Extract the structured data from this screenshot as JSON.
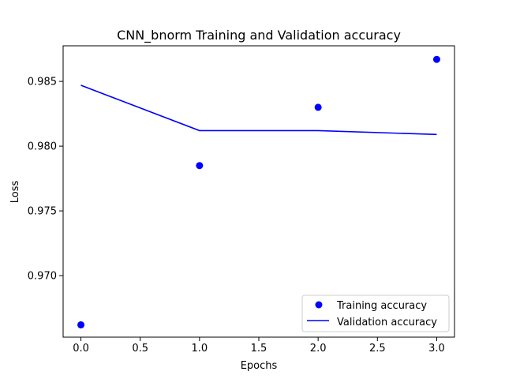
{
  "chart_data": {
    "type": "scatter",
    "title": "CNN_bnorm Training and Validation accuracy",
    "xlabel": "Epochs",
    "ylabel": "Loss",
    "xlim": [
      -0.15,
      3.15
    ],
    "ylim": [
      0.96525,
      0.98775
    ],
    "x_ticks": [
      0.0,
      0.5,
      1.0,
      1.5,
      2.0,
      2.5,
      3.0
    ],
    "x_tick_labels": [
      "0.0",
      "0.5",
      "1.0",
      "1.5",
      "2.0",
      "2.5",
      "3.0"
    ],
    "y_ticks": [
      0.97,
      0.975,
      0.98,
      0.985
    ],
    "y_tick_labels": [
      "0.970",
      "0.975",
      "0.980",
      "0.985"
    ],
    "grid": false,
    "legend_position": "bottom-right",
    "series": [
      {
        "name": "Training accuracy",
        "type": "scatter",
        "color": "#0000ff",
        "marker": "circle",
        "x": [
          0,
          1,
          2,
          3
        ],
        "y": [
          0.9662,
          0.9785,
          0.983,
          0.9867
        ]
      },
      {
        "name": "Validation accuracy",
        "type": "line",
        "color": "#0000ff",
        "x": [
          0,
          1,
          2,
          3
        ],
        "y": [
          0.9847,
          0.9812,
          0.9812,
          0.9809
        ]
      }
    ]
  }
}
